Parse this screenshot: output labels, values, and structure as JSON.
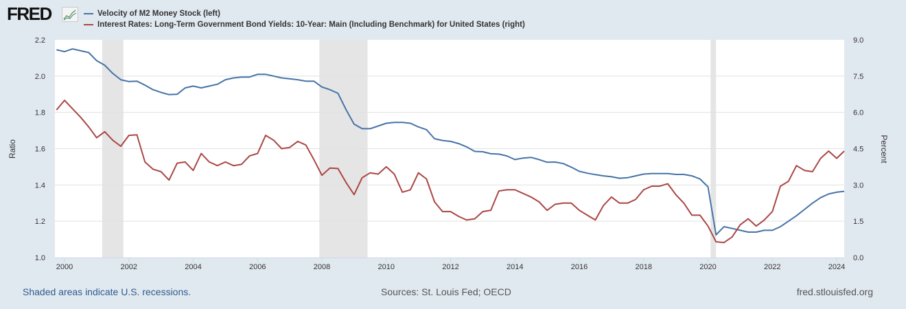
{
  "header": {
    "logo_text": "FRED",
    "logo_icon": "line-chart-icon"
  },
  "legend": [
    {
      "label": "Velocity of M2 Money Stock (left)",
      "color": "#4572a7"
    },
    {
      "label": "Interest Rates: Long-Term Government Bond Yields: 10-Year: Main (Including Benchmark) for United States (right)",
      "color": "#aa4643"
    }
  ],
  "footer": {
    "recession_note": "Shaded areas indicate U.S. recessions.",
    "sources": "Sources: St. Louis Fed; OECD",
    "site": "fred.stlouisfed.org"
  },
  "chart_data": {
    "type": "line",
    "title": "",
    "xlabel": "",
    "ylabel": "Ratio",
    "ylabel_right": "Percent",
    "xlim": [
      1999.7,
      2024.25
    ],
    "ylim": [
      1.0,
      2.2
    ],
    "ylim_right": [
      0.0,
      9.0
    ],
    "x_ticks": [
      "2000",
      "2002",
      "2004",
      "2006",
      "2008",
      "2010",
      "2012",
      "2014",
      "2016",
      "2018",
      "2020",
      "2022",
      "2024"
    ],
    "y_ticks": [
      "1.0",
      "1.2",
      "1.4",
      "1.6",
      "1.8",
      "2.0",
      "2.2"
    ],
    "y_ticks_right": [
      "0.0",
      "1.5",
      "3.0",
      "4.5",
      "6.0",
      "7.5",
      "9.0"
    ],
    "grid": true,
    "legend_position": "top-left",
    "x_start": 1999.75,
    "x_step": 0.25,
    "recessions": [
      [
        2001.17,
        2001.83
      ],
      [
        2007.92,
        2009.42
      ],
      [
        2020.08,
        2020.25
      ]
    ],
    "series": [
      {
        "name": "Velocity of M2 Money Stock (left)",
        "axis": "left",
        "color": "#4572a7",
        "values": [
          2.145,
          2.135,
          2.15,
          2.14,
          2.13,
          2.085,
          2.06,
          2.015,
          1.98,
          1.97,
          1.972,
          1.95,
          1.925,
          1.91,
          1.898,
          1.9,
          1.935,
          1.945,
          1.935,
          1.945,
          1.955,
          1.98,
          1.99,
          1.995,
          1.995,
          2.01,
          2.01,
          2.0,
          1.99,
          1.985,
          1.98,
          1.972,
          1.972,
          1.94,
          1.925,
          1.905,
          1.815,
          1.735,
          1.71,
          1.71,
          1.725,
          1.74,
          1.745,
          1.745,
          1.74,
          1.72,
          1.705,
          1.655,
          1.645,
          1.64,
          1.628,
          1.61,
          1.585,
          1.583,
          1.572,
          1.57,
          1.56,
          1.54,
          1.548,
          1.552,
          1.54,
          1.525,
          1.526,
          1.518,
          1.498,
          1.475,
          1.465,
          1.457,
          1.45,
          1.445,
          1.437,
          1.44,
          1.45,
          1.46,
          1.463,
          1.463,
          1.463,
          1.458,
          1.458,
          1.45,
          1.433,
          1.39,
          1.125,
          1.17,
          1.16,
          1.15,
          1.14,
          1.14,
          1.15,
          1.15,
          1.17,
          1.2,
          1.23,
          1.265,
          1.3,
          1.33,
          1.35,
          1.36,
          1.365
        ]
      },
      {
        "name": "Interest Rates: Long-Term Government Bond Yields: 10-Year: Main (Including Benchmark) for United States (right)",
        "axis": "right",
        "color": "#aa4643",
        "values": [
          6.1,
          6.5,
          6.15,
          5.8,
          5.4,
          4.95,
          5.2,
          4.85,
          4.6,
          5.05,
          5.07,
          3.95,
          3.65,
          3.55,
          3.2,
          3.9,
          3.95,
          3.6,
          4.3,
          3.95,
          3.8,
          3.95,
          3.8,
          3.85,
          4.2,
          4.3,
          5.05,
          4.85,
          4.5,
          4.55,
          4.8,
          4.65,
          4.05,
          3.4,
          3.7,
          3.68,
          3.1,
          2.6,
          3.3,
          3.5,
          3.45,
          3.75,
          3.45,
          2.7,
          2.8,
          3.5,
          3.25,
          2.3,
          1.9,
          1.9,
          1.7,
          1.55,
          1.6,
          1.9,
          1.95,
          2.75,
          2.8,
          2.8,
          2.65,
          2.5,
          2.3,
          1.95,
          2.2,
          2.25,
          2.25,
          1.95,
          1.75,
          1.55,
          2.15,
          2.5,
          2.25,
          2.25,
          2.4,
          2.8,
          2.95,
          2.95,
          3.05,
          2.6,
          2.25,
          1.75,
          1.75,
          1.3,
          0.65,
          0.62,
          0.85,
          1.35,
          1.6,
          1.3,
          1.55,
          1.9,
          2.95,
          3.15,
          3.8,
          3.6,
          3.55,
          4.1,
          4.4,
          4.1,
          4.4
        ]
      }
    ]
  }
}
